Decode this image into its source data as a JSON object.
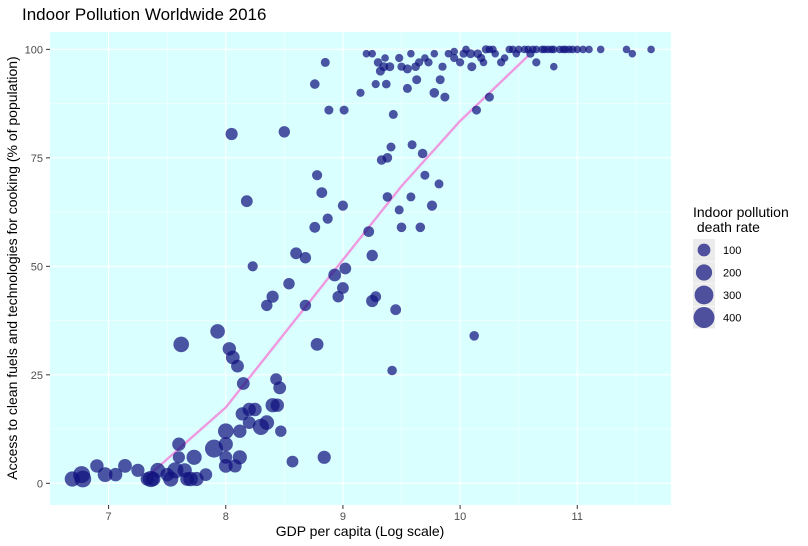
{
  "chart_data": {
    "type": "scatter",
    "title": "Indoor Pollution Worldwide 2016",
    "xlabel": "GDP per capita (Log scale)",
    "ylabel": "Access to clean fuels and technologies for cooking (% of population)",
    "xlim": [
      6.5,
      11.8
    ],
    "ylim": [
      -5,
      104
    ],
    "x_ticks": [
      7,
      8,
      9,
      10,
      11
    ],
    "x_tick_labels": [
      "7",
      "8",
      "9",
      "10",
      "11"
    ],
    "y_ticks": [
      0,
      25,
      50,
      75,
      100
    ],
    "y_tick_labels": [
      "0",
      "25",
      "50",
      "75",
      "100"
    ],
    "grid": true,
    "panel_color": "#d9ffff",
    "point_color": "#11127e",
    "line_color": "#ee99e0",
    "legend": {
      "title_lines": [
        "Indoor pollution",
        " death rate"
      ],
      "position": "right",
      "sizes": [
        100,
        200,
        300,
        400
      ],
      "labels": [
        "100",
        "200",
        "300",
        "400"
      ]
    },
    "trend_line": [
      [
        7.35,
        2
      ],
      [
        8.0,
        17.5
      ],
      [
        8.5,
        34.5
      ],
      [
        9.0,
        51.5
      ],
      [
        9.5,
        68.5
      ],
      [
        10.0,
        83.5
      ],
      [
        10.58,
        98.5
      ]
    ],
    "points": [
      [
        6.69,
        1,
        170
      ],
      [
        6.77,
        2,
        230
      ],
      [
        6.78,
        1,
        220
      ],
      [
        6.9,
        4,
        120
      ],
      [
        6.97,
        2,
        160
      ],
      [
        7.06,
        2,
        120
      ],
      [
        7.14,
        4,
        130
      ],
      [
        7.25,
        3,
        110
      ],
      [
        7.33,
        1,
        120
      ],
      [
        7.36,
        1,
        200
      ],
      [
        7.38,
        1,
        150
      ],
      [
        7.42,
        3,
        160
      ],
      [
        7.5,
        2,
        120
      ],
      [
        7.53,
        1,
        170
      ],
      [
        7.57,
        3,
        200
      ],
      [
        7.6,
        9,
        120
      ],
      [
        7.6,
        6,
        90
      ],
      [
        7.62,
        32,
        180
      ],
      [
        7.65,
        3,
        140
      ],
      [
        7.67,
        1,
        130
      ],
      [
        7.7,
        1,
        150
      ],
      [
        7.73,
        6,
        170
      ],
      [
        7.75,
        1,
        140
      ],
      [
        7.83,
        2,
        100
      ],
      [
        7.9,
        8,
        270
      ],
      [
        7.93,
        35,
        150
      ],
      [
        8.0,
        12,
        180
      ],
      [
        8.0,
        9,
        140
      ],
      [
        8.0,
        6,
        100
      ],
      [
        8.0,
        4,
        130
      ],
      [
        8.03,
        31,
        120
      ],
      [
        8.06,
        29,
        130
      ],
      [
        8.08,
        4,
        110
      ],
      [
        8.1,
        27,
        100
      ],
      [
        8.12,
        6,
        140
      ],
      [
        8.12,
        12,
        120
      ],
      [
        8.14,
        16,
        110
      ],
      [
        8.15,
        23,
        100
      ],
      [
        8.2,
        17,
        120
      ],
      [
        8.2,
        14,
        100
      ],
      [
        8.25,
        17,
        120
      ],
      [
        8.3,
        13,
        200
      ],
      [
        8.35,
        14,
        150
      ],
      [
        8.4,
        18,
        140
      ],
      [
        8.44,
        18,
        120
      ],
      [
        8.43,
        24,
        80
      ],
      [
        8.46,
        22,
        100
      ],
      [
        8.47,
        12,
        70
      ],
      [
        8.05,
        80.5,
        90
      ],
      [
        8.18,
        65,
        80
      ],
      [
        8.5,
        81,
        70
      ],
      [
        8.23,
        50,
        50
      ],
      [
        8.35,
        41,
        70
      ],
      [
        8.4,
        43,
        90
      ],
      [
        8.54,
        46,
        70
      ],
      [
        8.6,
        53,
        80
      ],
      [
        8.68,
        52,
        70
      ],
      [
        8.68,
        41,
        70
      ],
      [
        8.76,
        59,
        60
      ],
      [
        8.78,
        71,
        50
      ],
      [
        8.82,
        67,
        60
      ],
      [
        8.87,
        61,
        50
      ],
      [
        8.93,
        48,
        100
      ],
      [
        8.96,
        43,
        70
      ],
      [
        9.0,
        64,
        50
      ],
      [
        9.0,
        45,
        80
      ],
      [
        9.02,
        49.5,
        80
      ],
      [
        8.78,
        32,
        100
      ],
      [
        8.57,
        5,
        80
      ],
      [
        8.84,
        6,
        110
      ],
      [
        8.76,
        92,
        40
      ],
      [
        8.85,
        97,
        30
      ],
      [
        8.88,
        86,
        30
      ],
      [
        9.01,
        86,
        30
      ],
      [
        9.15,
        90,
        20
      ],
      [
        9.22,
        58,
        60
      ],
      [
        9.25,
        52.5,
        70
      ],
      [
        9.25,
        42,
        90
      ],
      [
        9.28,
        43,
        60
      ],
      [
        9.33,
        74.5,
        40
      ],
      [
        9.38,
        75,
        40
      ],
      [
        9.38,
        66,
        40
      ],
      [
        9.41,
        77.5,
        30
      ],
      [
        9.43,
        85,
        30
      ],
      [
        9.45,
        40,
        60
      ],
      [
        9.42,
        26,
        40
      ],
      [
        9.48,
        63,
        30
      ],
      [
        9.5,
        59,
        40
      ],
      [
        9.58,
        66,
        30
      ],
      [
        9.59,
        78,
        30
      ],
      [
        9.63,
        93,
        30
      ],
      [
        9.66,
        59,
        40
      ],
      [
        9.68,
        76,
        40
      ],
      [
        9.7,
        71,
        30
      ],
      [
        9.76,
        64,
        50
      ],
      [
        9.82,
        69,
        30
      ],
      [
        9.78,
        90,
        40
      ],
      [
        9.83,
        93,
        30
      ],
      [
        9.87,
        89,
        30
      ],
      [
        10.09,
        99,
        30
      ],
      [
        10.12,
        34,
        40
      ],
      [
        10.14,
        86,
        30
      ],
      [
        10.25,
        89,
        30
      ],
      [
        9.2,
        99,
        15
      ],
      [
        9.25,
        99,
        15
      ],
      [
        9.3,
        97,
        25
      ],
      [
        9.32,
        95,
        30
      ],
      [
        9.35,
        96,
        30
      ],
      [
        9.36,
        98,
        15
      ],
      [
        9.4,
        96,
        30
      ],
      [
        9.28,
        92,
        20
      ],
      [
        9.37,
        92,
        25
      ],
      [
        9.48,
        98,
        20
      ],
      [
        9.5,
        96,
        20
      ],
      [
        9.55,
        91,
        30
      ],
      [
        9.55,
        95.5,
        30
      ],
      [
        9.58,
        99,
        15
      ],
      [
        9.62,
        96,
        25
      ],
      [
        9.65,
        97,
        20
      ],
      [
        9.7,
        98,
        15
      ],
      [
        9.73,
        97,
        20
      ],
      [
        9.78,
        99,
        15
      ],
      [
        9.85,
        96,
        20
      ],
      [
        9.9,
        99,
        15
      ],
      [
        9.95,
        98,
        20
      ],
      [
        10.03,
        99,
        20
      ],
      [
        10.05,
        100,
        15
      ],
      [
        10.1,
        96,
        30
      ],
      [
        10.15,
        99,
        25
      ],
      [
        10.18,
        98,
        20
      ],
      [
        10.2,
        97,
        15
      ],
      [
        10.22,
        100,
        20
      ],
      [
        10.25,
        100,
        15
      ],
      [
        10.28,
        100,
        15
      ],
      [
        10.3,
        99,
        15
      ],
      [
        10.35,
        97,
        20
      ],
      [
        10.38,
        98,
        15
      ],
      [
        10.42,
        100,
        15
      ],
      [
        10.45,
        100,
        15
      ],
      [
        10.48,
        99,
        15
      ],
      [
        10.5,
        100,
        15
      ],
      [
        10.55,
        100,
        15
      ],
      [
        10.58,
        100,
        15
      ],
      [
        10.6,
        99,
        20
      ],
      [
        10.62,
        100,
        15
      ],
      [
        10.65,
        100,
        15
      ],
      [
        10.7,
        100,
        15
      ],
      [
        10.72,
        100,
        15
      ],
      [
        10.75,
        100,
        15
      ],
      [
        10.78,
        100,
        15
      ],
      [
        10.8,
        100,
        15
      ],
      [
        10.85,
        100,
        15
      ],
      [
        10.88,
        100,
        15
      ],
      [
        10.9,
        100,
        15
      ],
      [
        10.93,
        100,
        15
      ],
      [
        10.96,
        100,
        15
      ],
      [
        11.0,
        100,
        15
      ],
      [
        11.05,
        100,
        15
      ],
      [
        11.1,
        100,
        15
      ],
      [
        11.2,
        100,
        15
      ],
      [
        11.42,
        100,
        15
      ],
      [
        11.47,
        99,
        15
      ],
      [
        11.63,
        100,
        15
      ],
      [
        10.65,
        97,
        20
      ],
      [
        10.8,
        96,
        15
      ],
      [
        10.0,
        97,
        20
      ],
      [
        9.95,
        99.5,
        15
      ]
    ]
  }
}
